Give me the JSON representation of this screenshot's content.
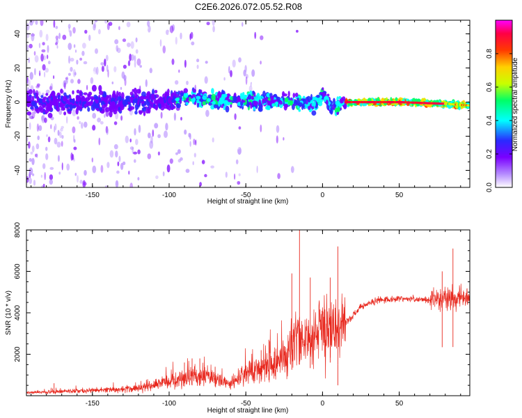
{
  "title": "C2E6.2026.072.05.52.R08",
  "chart_data": [
    {
      "type": "heatmap",
      "xlabel": "Height of straight line (km)",
      "ylabel": "Frequency (Hz)",
      "xlim": [
        -193,
        96
      ],
      "ylim": [
        -50,
        48
      ],
      "xticks": [
        -150,
        -100,
        -50,
        0,
        50
      ],
      "yticks": [
        -40,
        -20,
        0,
        20,
        40
      ],
      "colorbar": {
        "label": "Normalized spectral amplitude",
        "range": [
          0,
          1
        ],
        "ticks": [
          "0.0",
          "0.2",
          "0.4",
          "0.6",
          "0.8"
        ],
        "colors": [
          "#ffffff",
          "#b58cff",
          "#7a00ff",
          "#2a2aff",
          "#00ffff",
          "#00ff66",
          "#c8ff00",
          "#ffd000",
          "#ff3a00",
          "#ff0044",
          "#ff00ff"
        ]
      },
      "trend": [
        {
          "x": -193,
          "y": 0
        },
        {
          "x": -100,
          "y": 0
        },
        {
          "x": -90,
          "y": 3
        },
        {
          "x": -60,
          "y": 1
        },
        {
          "x": -20,
          "y": 0
        },
        {
          "x": -5,
          "y": -1
        },
        {
          "x": 0,
          "y": 5
        },
        {
          "x": 5,
          "y": -2
        },
        {
          "x": 10,
          "y": -3
        },
        {
          "x": 15,
          "y": 0
        },
        {
          "x": 50,
          "y": 0
        },
        {
          "x": 80,
          "y": -1
        },
        {
          "x": 96,
          "y": -2
        }
      ]
    },
    {
      "type": "line",
      "xlabel": "Height of straight line (km)",
      "ylabel": "SNR (10 * v/v)",
      "xlim": [
        -193,
        96
      ],
      "ylim": [
        0,
        8000
      ],
      "xticks": [
        -150,
        -100,
        -50,
        0,
        50
      ],
      "yticks": [
        2000,
        4000,
        6000,
        8000
      ],
      "color": "#e8281e",
      "envelope": [
        {
          "x": -193,
          "y": 150
        },
        {
          "x": -150,
          "y": 250
        },
        {
          "x": -120,
          "y": 350
        },
        {
          "x": -100,
          "y": 700
        },
        {
          "x": -85,
          "y": 1000
        },
        {
          "x": -70,
          "y": 900
        },
        {
          "x": -60,
          "y": 500
        },
        {
          "x": -50,
          "y": 1100
        },
        {
          "x": -35,
          "y": 1500
        },
        {
          "x": -25,
          "y": 1700
        },
        {
          "x": -20,
          "y": 2500
        },
        {
          "x": -15,
          "y": 3000
        },
        {
          "x": -10,
          "y": 2500
        },
        {
          "x": 0,
          "y": 3300
        },
        {
          "x": 5,
          "y": 3200
        },
        {
          "x": 10,
          "y": 3000
        },
        {
          "x": 15,
          "y": 3500
        },
        {
          "x": 20,
          "y": 3900
        },
        {
          "x": 25,
          "y": 4300
        },
        {
          "x": 35,
          "y": 4600
        },
        {
          "x": 50,
          "y": 4700
        },
        {
          "x": 70,
          "y": 4600
        },
        {
          "x": 80,
          "y": 4700
        },
        {
          "x": 96,
          "y": 4700
        }
      ],
      "spikes": [
        {
          "x": -15,
          "y": 8000
        },
        {
          "x": -20,
          "y": 5900
        },
        {
          "x": 10,
          "y": 7200
        },
        {
          "x": 5,
          "y": 5700
        },
        {
          "x": -8,
          "y": 5700
        },
        {
          "x": 85,
          "y": 7100
        },
        {
          "x": 78,
          "y": 6000
        },
        {
          "x": -35,
          "y": 2700
        },
        {
          "x": -40,
          "y": 2200
        },
        {
          "x": -85,
          "y": 1800
        },
        {
          "x": -90,
          "y": 1600
        },
        {
          "x": -80,
          "y": 1800
        },
        {
          "x": -70,
          "y": 1400
        },
        {
          "x": -175,
          "y": 600
        },
        {
          "x": 10,
          "y": 500
        }
      ]
    }
  ]
}
